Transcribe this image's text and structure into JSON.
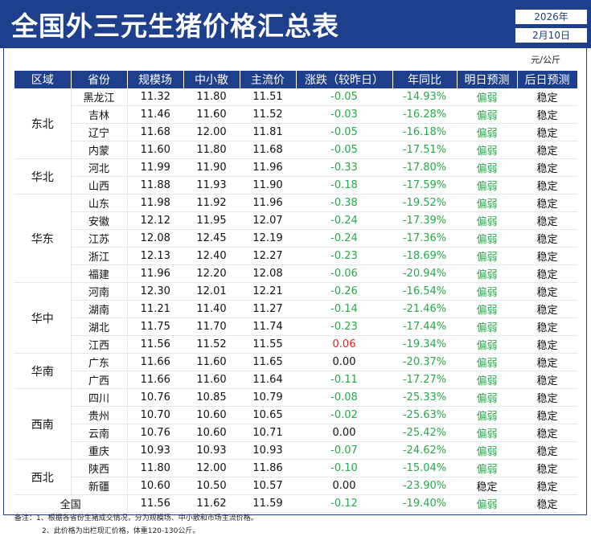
{
  "title": "全国外三元生猪价格汇总表",
  "date": {
    "year": "2026年",
    "day": "2月10日"
  },
  "unit": "元/公斤",
  "columns": [
    "区域",
    "省份",
    "规模场",
    "中小散",
    "主流价",
    "涨跌（较昨日）",
    "年同比",
    "明日预测",
    "后日预测"
  ],
  "regions": [
    {
      "name": "东北",
      "rows": [
        [
          "黑龙江",
          "11.32",
          "11.80",
          "11.51",
          "-0.05",
          "-14.93%",
          "偏弱",
          "稳定"
        ],
        [
          "吉林",
          "11.46",
          "11.60",
          "11.52",
          "-0.03",
          "-16.28%",
          "偏弱",
          "稳定"
        ],
        [
          "辽宁",
          "11.68",
          "12.00",
          "11.81",
          "-0.05",
          "-16.18%",
          "偏弱",
          "稳定"
        ],
        [
          "内蒙",
          "11.60",
          "11.80",
          "11.68",
          "-0.05",
          "-17.51%",
          "偏弱",
          "稳定"
        ]
      ]
    },
    {
      "name": "华北",
      "rows": [
        [
          "河北",
          "11.99",
          "11.90",
          "11.96",
          "-0.33",
          "-17.80%",
          "偏弱",
          "稳定"
        ],
        [
          "山西",
          "11.88",
          "11.93",
          "11.90",
          "-0.18",
          "-17.59%",
          "偏弱",
          "稳定"
        ]
      ]
    },
    {
      "name": "华东",
      "rows": [
        [
          "山东",
          "11.98",
          "11.92",
          "11.96",
          "-0.38",
          "-19.52%",
          "偏弱",
          "稳定"
        ],
        [
          "安徽",
          "12.12",
          "11.95",
          "12.07",
          "-0.24",
          "-17.39%",
          "偏弱",
          "稳定"
        ],
        [
          "江苏",
          "12.08",
          "12.45",
          "12.19",
          "-0.24",
          "-17.36%",
          "偏弱",
          "稳定"
        ],
        [
          "浙江",
          "12.13",
          "12.40",
          "12.27",
          "-0.23",
          "-18.69%",
          "偏弱",
          "稳定"
        ],
        [
          "福建",
          "11.96",
          "12.20",
          "12.08",
          "-0.06",
          "-20.94%",
          "偏弱",
          "稳定"
        ]
      ]
    },
    {
      "name": "华中",
      "rows": [
        [
          "河南",
          "12.30",
          "12.01",
          "12.21",
          "-0.26",
          "-16.54%",
          "偏弱",
          "稳定"
        ],
        [
          "湖南",
          "11.21",
          "11.40",
          "11.27",
          "-0.14",
          "-21.46%",
          "偏弱",
          "稳定"
        ],
        [
          "湖北",
          "11.75",
          "11.70",
          "11.74",
          "-0.23",
          "-17.44%",
          "偏弱",
          "稳定"
        ],
        [
          "江西",
          "11.56",
          "11.52",
          "11.55",
          "0.06",
          "-19.34%",
          "偏弱",
          "稳定"
        ]
      ]
    },
    {
      "name": "华南",
      "rows": [
        [
          "广东",
          "11.66",
          "11.60",
          "11.65",
          "0.00",
          "-20.37%",
          "偏弱",
          "稳定"
        ],
        [
          "广西",
          "11.66",
          "11.60",
          "11.64",
          "-0.11",
          "-17.27%",
          "偏弱",
          "稳定"
        ]
      ]
    },
    {
      "name": "西南",
      "rows": [
        [
          "四川",
          "10.76",
          "10.85",
          "10.79",
          "-0.08",
          "-25.33%",
          "偏弱",
          "稳定"
        ],
        [
          "贵州",
          "10.70",
          "10.60",
          "10.65",
          "-0.02",
          "-25.63%",
          "偏弱",
          "稳定"
        ],
        [
          "云南",
          "10.76",
          "10.60",
          "10.71",
          "0.00",
          "-25.42%",
          "偏弱",
          "稳定"
        ],
        [
          "重庆",
          "10.93",
          "10.93",
          "10.93",
          "-0.07",
          "-24.62%",
          "偏弱",
          "稳定"
        ]
      ]
    },
    {
      "name": "西北",
      "rows": [
        [
          "陕西",
          "11.80",
          "12.00",
          "11.86",
          "-0.10",
          "-15.04%",
          "偏弱",
          "稳定"
        ],
        [
          "新疆",
          "10.60",
          "10.50",
          "10.57",
          "0.00",
          "-23.90%",
          "稳定",
          "稳定"
        ]
      ]
    }
  ],
  "national": [
    "全国",
    "11.56",
    "11.62",
    "11.59",
    "-0.12",
    "-19.40%",
    "偏弱",
    "稳定"
  ],
  "notes": [
    "备注：1、根据各省份生猪成交情况，分为规模场、中小散和市场主流价格。",
    "2、此价格为出栏现汇价格，体重120-130公斤。"
  ],
  "colors": {
    "header": "#1e3f8b",
    "down": "#2aa84a",
    "up": "#e0201e"
  }
}
